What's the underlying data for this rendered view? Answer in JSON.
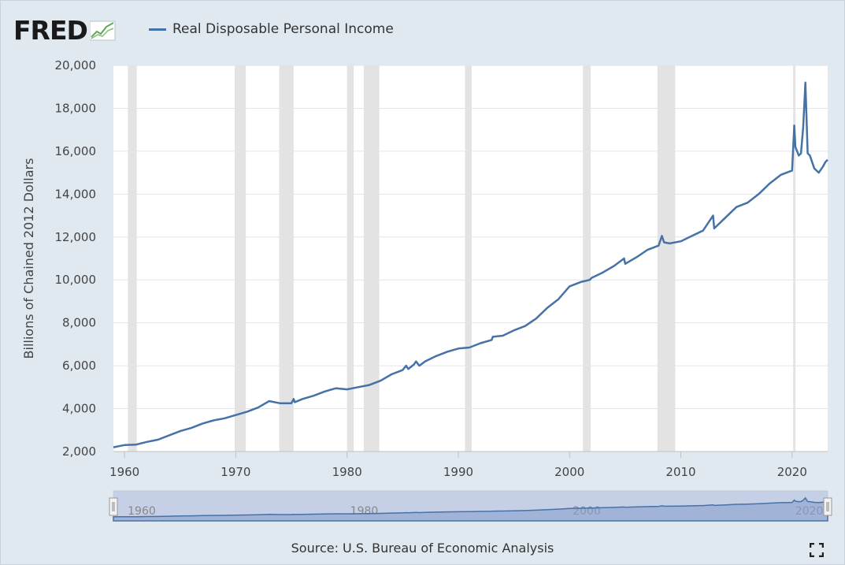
{
  "logo": {
    "text": "FRED"
  },
  "legend": {
    "label": "Real Disposable Personal Income",
    "color": "#4572a7"
  },
  "source": "Source: U.S. Bureau of Economic Analysis",
  "navigator": {
    "labels": [
      "1960",
      "1980",
      "2000",
      "2020"
    ]
  },
  "icons": {
    "logo_graph": "line-chart-icon",
    "fullscreen": "fullscreen-icon"
  },
  "chart_data": {
    "type": "line",
    "title": "",
    "xlabel": "",
    "ylabel": "Billions of Chained 2012 Dollars",
    "ylim": [
      2000,
      20000
    ],
    "xlim": [
      1959.0,
      2023.2
    ],
    "yticks": [
      2000,
      4000,
      6000,
      8000,
      10000,
      12000,
      14000,
      16000,
      18000,
      20000
    ],
    "ytick_labels": [
      "2,000",
      "4,000",
      "6,000",
      "8,000",
      "10,000",
      "12,000",
      "14,000",
      "16,000",
      "18,000",
      "20,000"
    ],
    "xticks": [
      1960,
      1970,
      1980,
      1990,
      2000,
      2010,
      2020
    ],
    "xtick_labels": [
      "1960",
      "1970",
      "1980",
      "1990",
      "2000",
      "2010",
      "2020"
    ],
    "grid": true,
    "recessions": [
      [
        1960.3,
        1961.1
      ],
      [
        1969.9,
        1970.9
      ],
      [
        1973.9,
        1975.2
      ],
      [
        1980.0,
        1980.6
      ],
      [
        1981.5,
        1982.9
      ],
      [
        1990.6,
        1991.2
      ],
      [
        2001.2,
        2001.9
      ],
      [
        2007.9,
        2009.5
      ],
      [
        2020.1,
        2020.3
      ]
    ],
    "series": [
      {
        "name": "Real Disposable Personal Income",
        "color": "#4572a7",
        "x": [
          1959.0,
          1959.5,
          1960.0,
          1961.0,
          1962.0,
          1963.0,
          1964.0,
          1965.0,
          1966.0,
          1967.0,
          1968.0,
          1969.0,
          1970.0,
          1971.0,
          1972.0,
          1973.0,
          1974.0,
          1975.0,
          1975.2,
          1975.3,
          1976.0,
          1977.0,
          1978.0,
          1979.0,
          1980.0,
          1981.0,
          1982.0,
          1983.0,
          1984.0,
          1985.0,
          1985.3,
          1985.5,
          1986.0,
          1986.2,
          1986.5,
          1987.0,
          1988.0,
          1989.0,
          1990.0,
          1991.0,
          1992.0,
          1993.0,
          1993.1,
          1994.0,
          1995.0,
          1996.0,
          1997.0,
          1998.0,
          1999.0,
          2000.0,
          2001.0,
          2001.8,
          2002.0,
          2003.0,
          2004.0,
          2004.9,
          2005.0,
          2006.0,
          2007.0,
          2008.0,
          2008.3,
          2008.5,
          2009.0,
          2010.0,
          2011.0,
          2012.0,
          2012.9,
          2013.0,
          2014.0,
          2015.0,
          2016.0,
          2017.0,
          2018.0,
          2019.0,
          2020.0,
          2020.2,
          2020.3,
          2020.6,
          2020.8,
          2021.0,
          2021.2,
          2021.4,
          2021.6,
          2022.0,
          2022.4,
          2022.8,
          2023.0,
          2023.2
        ],
        "y": [
          2200,
          2250,
          2300,
          2320,
          2450,
          2550,
          2750,
          2950,
          3100,
          3300,
          3450,
          3550,
          3700,
          3850,
          4050,
          4350,
          4250,
          4250,
          4450,
          4300,
          4450,
          4600,
          4800,
          4950,
          4900,
          5000,
          5100,
          5300,
          5600,
          5800,
          6000,
          5850,
          6050,
          6200,
          6000,
          6200,
          6450,
          6650,
          6800,
          6850,
          7050,
          7200,
          7350,
          7400,
          7650,
          7850,
          8200,
          8700,
          9100,
          9700,
          9900,
          10000,
          10100,
          10350,
          10650,
          11000,
          10750,
          11050,
          11400,
          11600,
          12050,
          11750,
          11700,
          11800,
          12050,
          12300,
          13000,
          12400,
          12900,
          13400,
          13600,
          14000,
          14500,
          14900,
          15100,
          17200,
          16200,
          15800,
          15900,
          17100,
          19200,
          15900,
          15800,
          15200,
          15000,
          15300,
          15500,
          15600
        ]
      }
    ]
  }
}
